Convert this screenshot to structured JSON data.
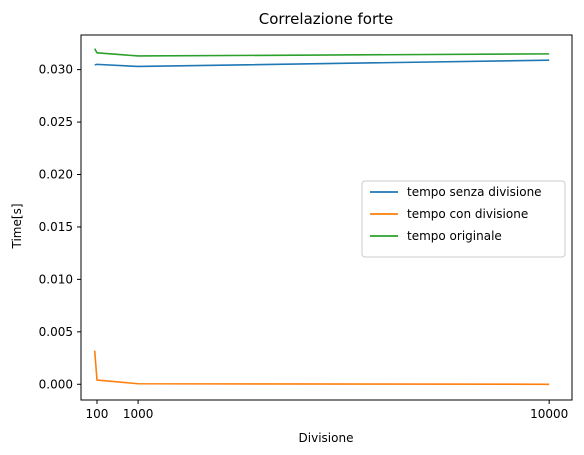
{
  "chart_data": {
    "type": "line",
    "title": "Correlazione forte",
    "xlabel": "Divisione",
    "ylabel": "Time[s]",
    "x": [
      50,
      100,
      1000,
      10000
    ],
    "x_ticks": [
      100,
      1000,
      10000
    ],
    "y_ticks": [
      0.0,
      0.005,
      0.01,
      0.015,
      0.02,
      0.025,
      0.03
    ],
    "y_tick_labels": [
      "0.000",
      "0.005",
      "0.010",
      "0.015",
      "0.020",
      "0.025",
      "0.030"
    ],
    "xlim": [
      -250,
      10500
    ],
    "ylim": [
      -0.0015,
      0.0333
    ],
    "grid": false,
    "legend_position": "center-right",
    "series": [
      {
        "name": "tempo senza divisione",
        "color": "#1f77b4",
        "values": [
          0.03045,
          0.0305,
          0.0303,
          0.0309
        ]
      },
      {
        "name": "tempo con divisione",
        "color": "#ff7f0e",
        "values": [
          0.0032,
          0.0004,
          5e-05,
          0.0
        ]
      },
      {
        "name": "tempo originale",
        "color": "#2ca02c",
        "values": [
          0.032,
          0.0316,
          0.0313,
          0.0315
        ]
      }
    ]
  }
}
